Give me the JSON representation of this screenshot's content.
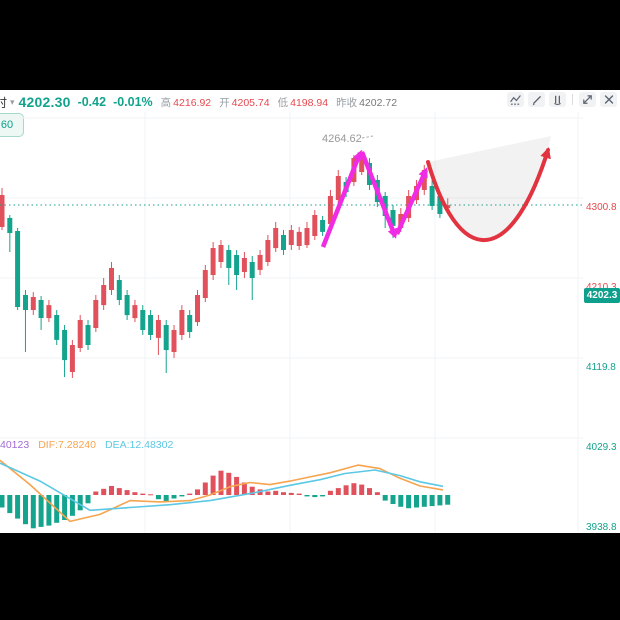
{
  "header": {
    "timeframe": "时",
    "price": "4202.30",
    "change": "-0.42",
    "change_pct": "-0.01%",
    "high_label": "高",
    "high": "4216.92",
    "open_label": "开",
    "open": "4205.74",
    "low_label": "低",
    "low": "4198.94",
    "prev_close_label": "昨收",
    "prev_close": "4202.72"
  },
  "toolbar": {
    "icons": [
      "indicator-icon",
      "draw-icon",
      "hand-icon",
      "expand-icon",
      "close-icon"
    ]
  },
  "timeframe_button": "60",
  "macd_header": {
    "macd_value": "40123",
    "dif": "DIF:7.28240",
    "dea": "DEA:12.48302"
  },
  "colors": {
    "up": "#e8484f",
    "down": "#13a38c",
    "candle_up": "#e0515c",
    "candle_down": "#14a38d",
    "badge": "#0fa08d",
    "dotted_line": "#17a08a",
    "grid": "#f2f3f5",
    "axis_gray": "#9aa0a6",
    "dif_line": "#f6a44f",
    "dea_line": "#5cc8e4",
    "macd_label_purple": "#a36ad6",
    "zigzag": "#f02be4",
    "arrow": "#e23440"
  },
  "chart_data": {
    "type": "candlestick",
    "indicator": "MACD",
    "title": "",
    "current_price": 4202.3,
    "current_price_label": "4202.3",
    "high_annotation": "4264.62",
    "price_axis": [
      4300.8,
      4210.3,
      4119.8,
      4029.3,
      3938.8
    ],
    "candles": [
      [
        4177.5,
        4221.6,
        4174.1,
        4213.7
      ],
      [
        4187.7,
        4191.1,
        4149.2,
        4170.7
      ],
      [
        4173.0,
        4176.4,
        4083.6,
        4087.0
      ],
      [
        4100.6,
        4106.2,
        4036.1,
        4083.6
      ],
      [
        4083.6,
        4103.9,
        4077.9,
        4098.3
      ],
      [
        4094.9,
        4099.4,
        4061.0,
        4074.5
      ],
      [
        4074.5,
        4094.9,
        4070.0,
        4089.2
      ],
      [
        4077.9,
        4083.6,
        4044.0,
        4049.7
      ],
      [
        4061.0,
        4066.6,
        4007.8,
        4027.0
      ],
      [
        4013.5,
        4049.7,
        4006.7,
        4044.0
      ],
      [
        4040.6,
        4077.9,
        4036.1,
        4072.3
      ],
      [
        4066.6,
        4072.3,
        4038.3,
        4044.0
      ],
      [
        4063.2,
        4100.6,
        4058.7,
        4094.9
      ],
      [
        4089.2,
        4119.8,
        4083.6,
        4111.9
      ],
      [
        4106.2,
        4137.9,
        4100.6,
        4131.1
      ],
      [
        4117.5,
        4123.2,
        4089.2,
        4094.9
      ],
      [
        4100.6,
        4106.2,
        4072.3,
        4077.9
      ],
      [
        4074.5,
        4094.9,
        4070.0,
        4089.2
      ],
      [
        4083.6,
        4089.2,
        4055.3,
        4061.0
      ],
      [
        4077.9,
        4083.6,
        4049.7,
        4055.3
      ],
      [
        4052.0,
        4077.9,
        4032.7,
        4072.3
      ],
      [
        4066.6,
        4072.3,
        4012.3,
        4038.3
      ],
      [
        4036.1,
        4066.6,
        4029.3,
        4061.0
      ],
      [
        4055.3,
        4089.2,
        4049.7,
        4083.6
      ],
      [
        4077.9,
        4083.6,
        4052.0,
        4058.7
      ],
      [
        4070.0,
        4106.2,
        4065.5,
        4100.6
      ],
      [
        4097.2,
        4134.5,
        4092.6,
        4128.9
      ],
      [
        4123.2,
        4160.5,
        4117.5,
        4153.7
      ],
      [
        4137.9,
        4162.8,
        4131.1,
        4157.1
      ],
      [
        4151.5,
        4157.1,
        4111.9,
        4131.1
      ],
      [
        4145.8,
        4151.5,
        4106.2,
        4123.2
      ],
      [
        4126.6,
        4149.2,
        4119.8,
        4142.4
      ],
      [
        4137.9,
        4144.7,
        4094.9,
        4119.8
      ],
      [
        4128.9,
        4151.5,
        4123.2,
        4145.8
      ],
      [
        4137.9,
        4168.5,
        4133.4,
        4162.8
      ],
      [
        4153.7,
        4183.2,
        4149.2,
        4176.4
      ],
      [
        4168.5,
        4174.1,
        4145.8,
        4151.5
      ],
      [
        4157.1,
        4179.8,
        4151.5,
        4174.1
      ],
      [
        4156.0,
        4177.5,
        4151.5,
        4171.9
      ],
      [
        4157.1,
        4183.2,
        4153.7,
        4176.4
      ],
      [
        4167.3,
        4196.7,
        4162.8,
        4191.1
      ],
      [
        4185.4,
        4190.0,
        4167.3,
        4171.9
      ],
      [
        4180.9,
        4219.4,
        4176.4,
        4212.6
      ],
      [
        4208.0,
        4242.0,
        4203.5,
        4235.2
      ],
      [
        4228.4,
        4234.1,
        4211.4,
        4217.1
      ],
      [
        4228.4,
        4259.0,
        4223.9,
        4255.5
      ],
      [
        4239.7,
        4264.6,
        4236.3,
        4258.9
      ],
      [
        4249.9,
        4255.5,
        4219.4,
        4225.0
      ],
      [
        4230.7,
        4236.3,
        4200.1,
        4205.8
      ],
      [
        4212.6,
        4217.1,
        4176.4,
        4190.0
      ],
      [
        4196.7,
        4202.4,
        4165.1,
        4178.7
      ],
      [
        4176.4,
        4199.0,
        4171.9,
        4192.2
      ],
      [
        4187.7,
        4219.4,
        4183.2,
        4212.6
      ],
      [
        4208.0,
        4230.7,
        4203.5,
        4223.9
      ],
      [
        4219.4,
        4247.6,
        4213.7,
        4242.0
      ],
      [
        4223.9,
        4230.7,
        4196.7,
        4201.3
      ],
      [
        4212.6,
        4217.1,
        4187.7,
        4192.2
      ],
      [
        4198.9,
        4210.0,
        4194.5,
        4202.3
      ]
    ],
    "macd": {
      "axis": [
        45.7198,
        4.1418,
        -37.436
      ],
      "histogram": [
        -18,
        -26,
        -34,
        -42,
        -48,
        -46,
        -44,
        -40,
        -36,
        -30,
        -22,
        -12,
        5,
        9,
        13,
        10,
        7,
        4,
        2,
        1,
        -6,
        -10,
        -5,
        -2,
        2,
        8,
        18,
        28,
        35,
        32,
        26,
        18,
        12,
        8,
        5,
        6,
        4,
        3,
        2,
        -2,
        -3,
        -2,
        6,
        10,
        14,
        17,
        15,
        10,
        4,
        -8,
        -13,
        -17,
        -19,
        -18,
        -17,
        -16,
        -15,
        -14
      ],
      "dif": [
        [
          0,
          50
        ],
        [
          30,
          15
        ],
        [
          70,
          -38
        ],
        [
          100,
          -28
        ],
        [
          130,
          -8
        ],
        [
          160,
          -10
        ],
        [
          190,
          -8
        ],
        [
          210,
          0
        ],
        [
          230,
          12
        ],
        [
          250,
          18
        ],
        [
          270,
          15
        ],
        [
          290,
          20
        ],
        [
          310,
          26
        ],
        [
          330,
          32
        ],
        [
          358,
          43
        ],
        [
          380,
          38
        ],
        [
          400,
          24
        ],
        [
          420,
          13
        ],
        [
          443,
          7.3
        ]
      ],
      "dea": [
        [
          0,
          46
        ],
        [
          40,
          20
        ],
        [
          90,
          -22
        ],
        [
          130,
          -18
        ],
        [
          170,
          -14
        ],
        [
          210,
          -8
        ],
        [
          250,
          2
        ],
        [
          290,
          14
        ],
        [
          320,
          22
        ],
        [
          345,
          31
        ],
        [
          375,
          36
        ],
        [
          400,
          28
        ],
        [
          420,
          19
        ],
        [
          443,
          12.5
        ]
      ]
    }
  }
}
